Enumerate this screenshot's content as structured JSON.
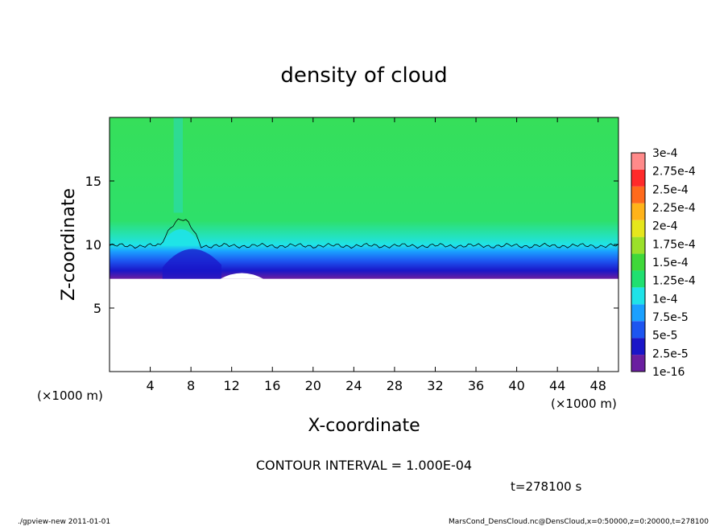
{
  "chart_data": {
    "type": "heatmap",
    "title": "density of cloud",
    "xlabel": "X-coordinate",
    "ylabel": "Z-coordinate",
    "x_unit": "(×1000 m)",
    "y_unit": "(×1000 m)",
    "xlim": [
      0,
      50
    ],
    "ylim": [
      0,
      20
    ],
    "x_ticks": [
      4,
      8,
      12,
      16,
      20,
      24,
      28,
      32,
      36,
      40,
      44,
      48
    ],
    "y_ticks": [
      5,
      10,
      15
    ],
    "color_levels": [
      "1e-16",
      "2.5e-5",
      "5e-5",
      "7.5e-5",
      "1e-4",
      "1.25e-4",
      "1.5e-4",
      "1.75e-4",
      "2e-4",
      "2.25e-4",
      "2.5e-4",
      "2.75e-4",
      "3e-4"
    ],
    "colors": [
      "#6a1fa0",
      "#1a16c8",
      "#1d55f0",
      "#1aa0ff",
      "#1fe3e8",
      "#20e070",
      "#3fd83a",
      "#9be02a",
      "#e6e61c",
      "#ffb31a",
      "#ff6a1c",
      "#ff2a2a",
      "#ff8a8a"
    ],
    "contour_level": "1e-4",
    "profile": {
      "base_height": 7.3,
      "contour_height": 9.9,
      "top_height": 20,
      "plume_x": [
        5,
        9
      ],
      "plume_top": 12.5,
      "gap_x": [
        12,
        14
      ],
      "gap_base": 8.2
    }
  },
  "annotations": {
    "contour_interval": "CONTOUR INTERVAL = 1.000E-04",
    "time": "t=278100 s"
  },
  "footer": {
    "left": "./gpview-new  2011-01-01",
    "right": "MarsCond_DensCloud.nc@DensCloud,x=0:50000,z=0:20000,t=278100"
  }
}
